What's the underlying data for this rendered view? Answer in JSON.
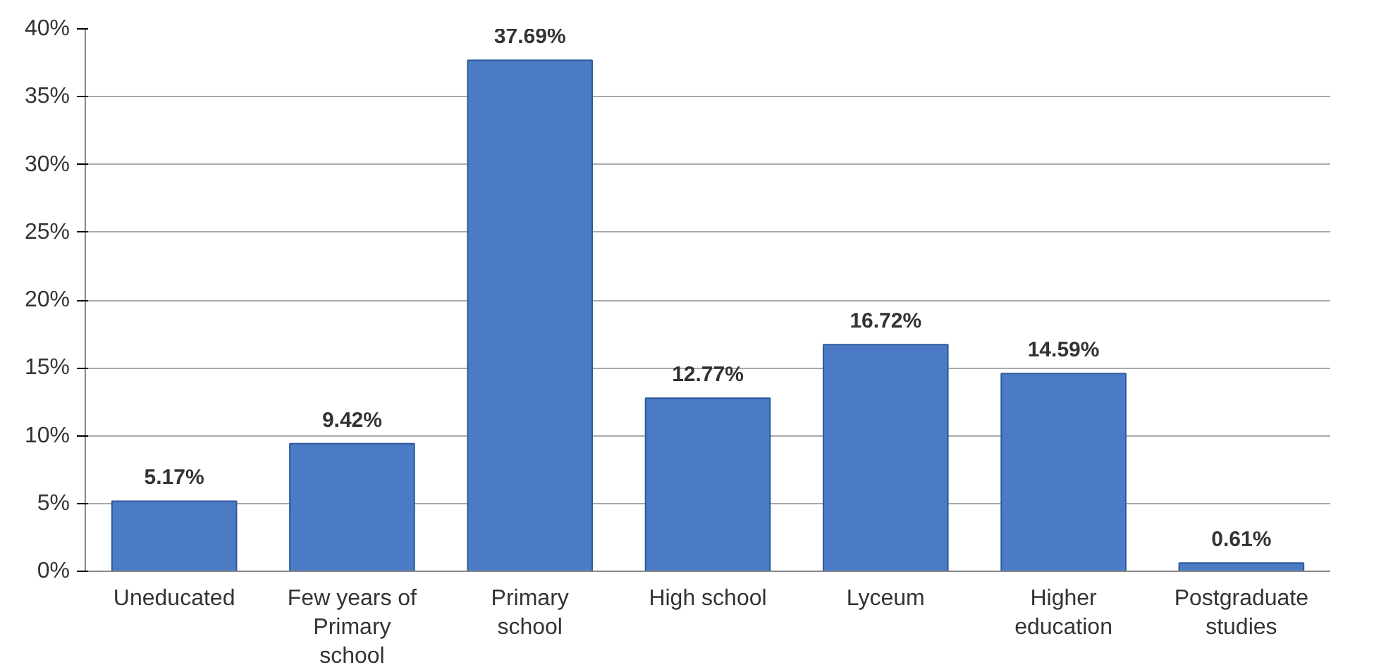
{
  "chart_data": {
    "type": "bar",
    "categories": [
      "Uneducated",
      "Few years of Primary school",
      "Primary school",
      "High school",
      "Lyceum",
      "Higher education",
      "Postgraduate studies"
    ],
    "values": [
      5.17,
      9.42,
      37.69,
      12.77,
      16.72,
      14.59,
      0.61
    ],
    "value_labels": [
      "5.17%",
      "9.42%",
      "37.69%",
      "12.77%",
      "16.72%",
      "14.59%",
      "0.61%"
    ],
    "color": "#4a7bc4",
    "ylim": [
      0,
      40
    ],
    "yticks": [
      {
        "value": 0,
        "label": "0%"
      },
      {
        "value": 5,
        "label": "5%"
      },
      {
        "value": 10,
        "label": "10%"
      },
      {
        "value": 15,
        "label": "15%"
      },
      {
        "value": 20,
        "label": "20%"
      },
      {
        "value": 25,
        "label": "25%"
      },
      {
        "value": 30,
        "label": "30%"
      },
      {
        "value": 35,
        "label": "35%"
      },
      {
        "value": 40,
        "label": "40%"
      }
    ],
    "grid": "y"
  }
}
